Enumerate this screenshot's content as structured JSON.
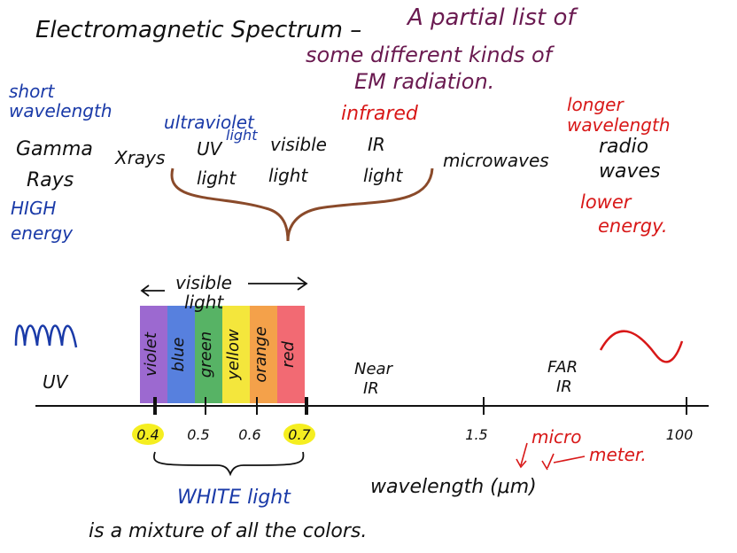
{
  "header": {
    "title": "Electromagnetic Spectrum –",
    "subtitle": [
      "A partial list of",
      "some different kinds of",
      "EM radiation."
    ]
  },
  "top": {
    "short_wavelength": [
      "short",
      "wavelength"
    ],
    "gamma_rays": [
      "Gamma",
      "Rays"
    ],
    "high_energy": [
      "HIGH",
      "energy"
    ],
    "xrays": "Xrays",
    "ultraviolet_light": [
      "ultraviolet",
      "light"
    ],
    "uv_light": [
      "UV",
      "light"
    ],
    "visible_light": [
      "visible",
      "light"
    ],
    "infrared": "infrared",
    "ir_light": [
      "IR",
      "light"
    ],
    "microwaves": "microwaves",
    "longer_wavelength": [
      "longer",
      "wavelength"
    ],
    "radio_waves": [
      "radio",
      "waves"
    ],
    "lower_energy": [
      "lower",
      "energy."
    ]
  },
  "bottom": {
    "visible_light": [
      "visible",
      "light"
    ],
    "colors": [
      "violet",
      "blue",
      "green",
      "yellow",
      "orange",
      "red"
    ],
    "uv": "UV",
    "near_ir": [
      "Near",
      "IR"
    ],
    "far_ir": [
      "FAR",
      "IR"
    ],
    "axis_labels": [
      "0.4",
      "0.5",
      "0.6",
      "0.7",
      "1.5",
      "100"
    ],
    "micro": "micro",
    "meter": "meter.",
    "axis_title": "wavelength (μm)",
    "white_light": "WHITE light",
    "caption": "is a mixture of all the colors."
  }
}
